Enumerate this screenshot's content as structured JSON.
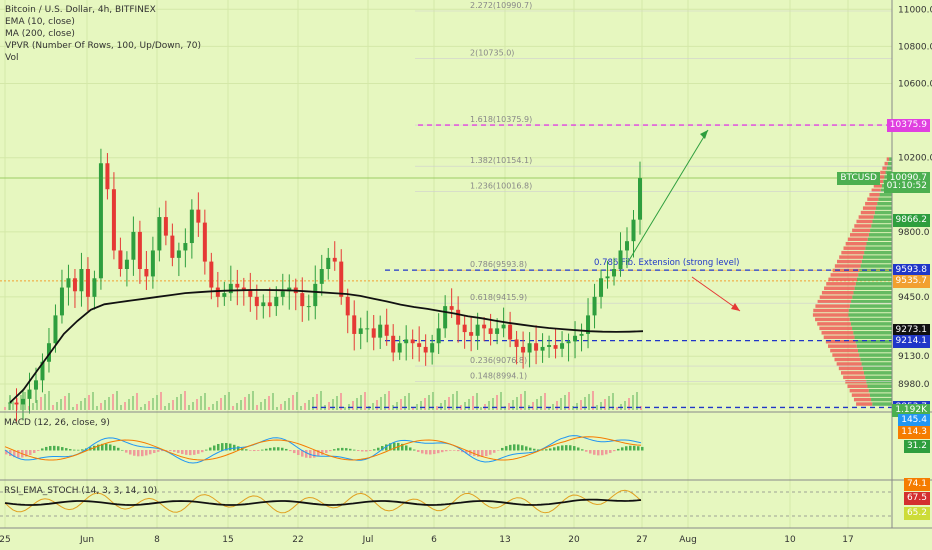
{
  "chart_data": {
    "type": "candlestick",
    "title": "Bitcoin / U.S. Dollar, 4h, BITFINEX",
    "indicators": [
      "EMA (10, close)",
      "MA (200, close)",
      "VPVR (Number Of Rows, 100, Up/Down, 70)",
      "Vol"
    ],
    "x_ticks": [
      "25",
      "Jun",
      "8",
      "15",
      "22",
      "Jul",
      "6",
      "13",
      "20",
      "27",
      "Aug",
      "10",
      "17"
    ],
    "y_ticks": [
      11000,
      10800,
      10600,
      10200,
      9800,
      9450,
      9130,
      8980
    ],
    "ylim": [
      8840,
      11050
    ],
    "close_series": [
      8880,
      8870,
      8900,
      8950,
      9000,
      9100,
      9200,
      9350,
      9500,
      9550,
      9480,
      9600,
      9450,
      9550,
      10170,
      10030,
      9700,
      9600,
      9650,
      9800,
      9600,
      9560,
      9700,
      9880,
      9780,
      9660,
      9700,
      9740,
      9920,
      9850,
      9640,
      9500,
      9450,
      9470,
      9520,
      9500,
      9490,
      9450,
      9400,
      9420,
      9400,
      9450,
      9480,
      9500,
      9470,
      9400,
      9400,
      9520,
      9600,
      9660,
      9640,
      9450,
      9350,
      9250,
      9280,
      9280,
      9230,
      9300,
      9240,
      9150,
      9200,
      9220,
      9200,
      9180,
      9150,
      9200,
      9280,
      9400,
      9380,
      9300,
      9260,
      9240,
      9300,
      9280,
      9250,
      9280,
      9300,
      9220,
      9180,
      9150,
      9200,
      9160,
      9180,
      9190,
      9170,
      9200,
      9210,
      9240,
      9250,
      9350,
      9450,
      9550,
      9560,
      9600,
      9700,
      9750,
      9866,
      10090
    ],
    "ma200_series": [
      8880,
      8950,
      9050,
      9150,
      9250,
      9320,
      9380,
      9410,
      9420,
      9430,
      9440,
      9450,
      9460,
      9470,
      9475,
      9480,
      9483,
      9485,
      9487,
      9487,
      9486,
      9484,
      9480,
      9475,
      9470,
      9465,
      9455,
      9440,
      9425,
      9408,
      9395,
      9385,
      9372,
      9360,
      9345,
      9335,
      9322,
      9310,
      9300,
      9290,
      9282,
      9276,
      9270,
      9265,
      9262,
      9261,
      9262,
      9265
    ],
    "fib_levels": [
      {
        "ratio": "2.272",
        "price": 10990.7,
        "label": "2.272(10990.7)"
      },
      {
        "ratio": "2",
        "price": 10735.0,
        "label": "2(10735.0)"
      },
      {
        "ratio": "1.618",
        "price": 10375.9,
        "label": "1.618(10375.9)"
      },
      {
        "ratio": "1.382",
        "price": 10154.1,
        "label": "1.382(10154.1)"
      },
      {
        "ratio": "1.236",
        "price": 10016.8,
        "label": "1.236(10016.8)"
      },
      {
        "ratio": "0.786",
        "price": 9593.8,
        "label": "0.786(9593.8)"
      },
      {
        "ratio": "0.618",
        "price": 9415.9,
        "label": "0.618(9415.9)"
      },
      {
        "ratio": "0.236",
        "price": 9076.8,
        "label": "0.236(9076.8)"
      },
      {
        "ratio": "0.148",
        "price": 8994.1,
        "label": "0.148(8994.1)"
      }
    ],
    "annotation": "0.786 Fib. Extension (strong level)",
    "level_lines": [
      10375.9,
      9593.8,
      9214.1,
      8853.7
    ],
    "price_badges": [
      {
        "text": "10375.9",
        "price": 10375.9,
        "color": "#e040e0"
      },
      {
        "text": "BTCUSD",
        "price": 10090.7,
        "color": "#4caf50",
        "extra": "10090.7"
      },
      {
        "text": "01:10:52",
        "price": 10050,
        "color": "#4caf50"
      },
      {
        "text": "9866.2",
        "price": 9866.2,
        "color": "#2e9e3e"
      },
      {
        "text": "9593.8",
        "price": 9593.8,
        "color": "#2037c8"
      },
      {
        "text": "9535.7",
        "price": 9535.7,
        "color": "#f2a030"
      },
      {
        "text": "9273.1",
        "price": 9273.1,
        "color": "#111111"
      },
      {
        "text": "9214.1",
        "price": 9214.1,
        "color": "#2037c8"
      },
      {
        "text": "8853.7",
        "price": 8853.7,
        "color": "#2037c8"
      }
    ],
    "volume_label": "1.192K",
    "macd": {
      "label": "MACD (12, 26, close, 9)",
      "badges": [
        {
          "text": "145.4",
          "color": "#2196f3"
        },
        {
          "text": "114.3",
          "color": "#f57c00"
        },
        {
          "text": "31.2",
          "color": "#2e9e3e"
        }
      ]
    },
    "rsi": {
      "label": "RSI_EMA_STOCH (14, 3, 3, 14, 10)",
      "badges": [
        {
          "text": "74.1",
          "color": "#f57c00"
        },
        {
          "text": "67.5",
          "color": "#d32f2f"
        },
        {
          "text": "65.2",
          "color": "#cddc39"
        }
      ]
    }
  }
}
